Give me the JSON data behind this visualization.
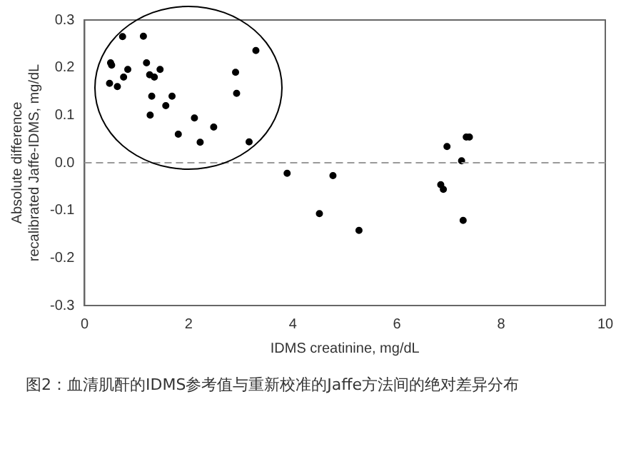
{
  "chart_data": {
    "type": "scatter",
    "xlabel": "IDMS creatinine, mg/dL",
    "ylabel": "Absolute difference recalibrated Jaffe-IDMS, mg/dL",
    "x": [
      0.5,
      0.52,
      0.48,
      0.63,
      0.73,
      0.75,
      0.83,
      1.13,
      1.19,
      1.25,
      1.34,
      1.26,
      1.29,
      1.45,
      1.56,
      1.68,
      1.8,
      2.11,
      2.22,
      2.48,
      2.9,
      2.92,
      3.16,
      3.29,
      3.89,
      4.51,
      4.77,
      5.27,
      6.84,
      6.89,
      6.96,
      7.24,
      7.27,
      7.33,
      7.39
    ],
    "values": [
      0.21,
      0.205,
      0.167,
      0.16,
      0.265,
      0.18,
      0.196,
      0.266,
      0.21,
      0.185,
      0.18,
      0.1,
      0.14,
      0.196,
      0.12,
      0.14,
      0.06,
      0.094,
      0.043,
      0.075,
      0.19,
      0.146,
      0.044,
      0.236,
      -0.022,
      -0.107,
      -0.027,
      -0.142,
      -0.046,
      -0.056,
      0.034,
      0.004,
      -0.121,
      0.054,
      0.054
    ],
    "color": "#000000",
    "marker": "circle",
    "xlim": [
      0,
      10
    ],
    "xticks": [
      0,
      2,
      4,
      6,
      8,
      10
    ],
    "ylim": [
      -0.3,
      0.3
    ],
    "yticks": [
      -0.3,
      -0.2,
      -0.1,
      {
        "value": 0,
        "label": "0.0"
      },
      0.1,
      0.2,
      0.3
    ],
    "ref_lines": [
      {
        "axis": "y",
        "value": 0,
        "label": null,
        "color": "#999999",
        "line_style": "dashed"
      }
    ],
    "grid": false,
    "legend": false,
    "annotations": [
      "图2：血清肌酐的IDMS参考值与重新校准的Jaffe方法间的绝对差异分布"
    ]
  }
}
